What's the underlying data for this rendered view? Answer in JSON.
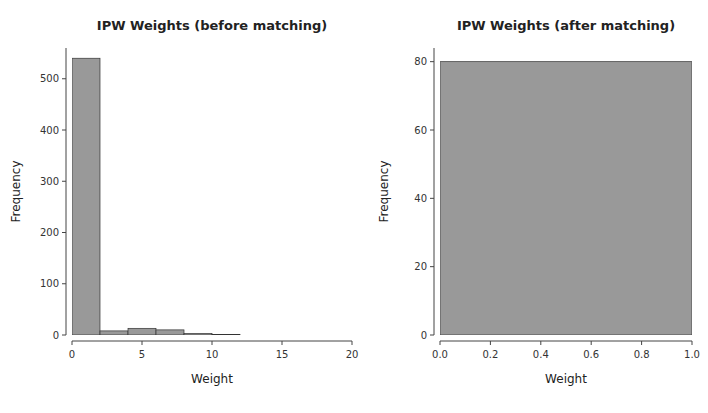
{
  "chart_data": [
    {
      "type": "histogram",
      "title": "IPW Weights (before matching)",
      "xlabel": "Weight",
      "ylabel": "Frequency",
      "bins": [
        0,
        2,
        4,
        6,
        8,
        10,
        12,
        14,
        16,
        18,
        20
      ],
      "values": [
        540,
        8,
        13,
        10,
        3,
        1,
        0,
        0,
        0,
        0
      ],
      "xlim": [
        0,
        20
      ],
      "ylim": [
        0,
        560
      ],
      "xticks": [
        0,
        5,
        10,
        15,
        20
      ],
      "yticks": [
        0,
        100,
        200,
        300,
        400,
        500
      ],
      "color": "#999999",
      "grid": false
    },
    {
      "type": "histogram",
      "title": "IPW Weights (after matching)",
      "xlabel": "Weight",
      "ylabel": "Frequency",
      "bins": [
        0.0,
        1.0
      ],
      "values": [
        80
      ],
      "xlim": [
        0.0,
        1.0
      ],
      "ylim": [
        0,
        84
      ],
      "xticks": [
        {
          "value": 0.0,
          "label": "0.0"
        },
        0.2,
        0.4,
        0.6,
        0.8,
        {
          "value": 1.0,
          "label": "1.0"
        }
      ],
      "yticks": [
        0,
        20,
        40,
        60,
        80
      ],
      "color": "#999999",
      "grid": false
    }
  ]
}
